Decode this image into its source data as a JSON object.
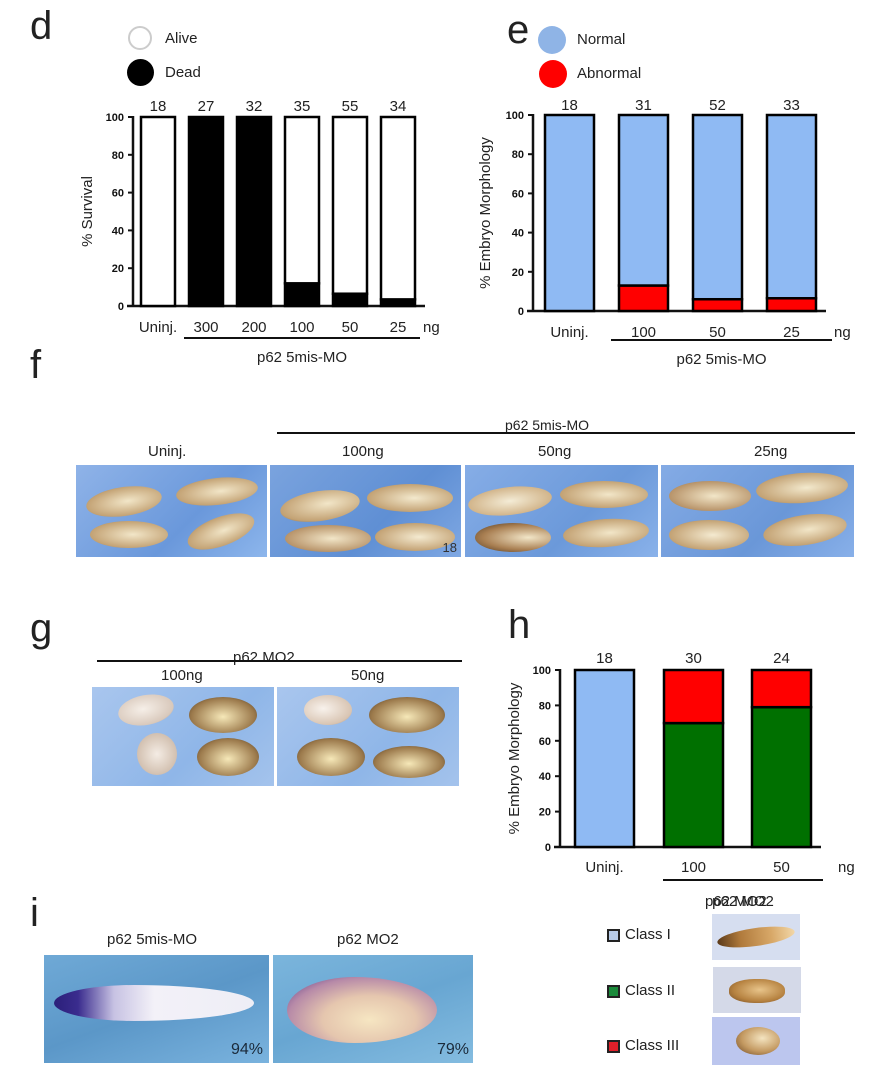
{
  "panels": {
    "d": {
      "letter": "d"
    },
    "e": {
      "letter": "e"
    },
    "f": {
      "letter": "f"
    },
    "g": {
      "letter": "g"
    },
    "h": {
      "letter": "h"
    },
    "i": {
      "letter": "i"
    }
  },
  "chart_data": [
    {
      "id": "d",
      "type": "bar",
      "stacked": true,
      "title": "",
      "ylabel": "% Survival",
      "xlabel": "",
      "unit_label": "ng",
      "group_label": "p62 5mis-MO",
      "categories": [
        "Uninj.",
        "300",
        "200",
        "100",
        "50",
        "25"
      ],
      "n_labels": [
        "18",
        "27",
        "32",
        "35",
        "55",
        "34"
      ],
      "ylim": [
        0,
        100
      ],
      "yticks": [
        "0",
        "20",
        "40",
        "60",
        "80",
        "100"
      ],
      "series": [
        {
          "name": "Dead",
          "color": "#000000",
          "values": [
            0,
            100,
            100,
            12,
            6.5,
            3.5
          ]
        },
        {
          "name": "Alive",
          "color": "#ffffff",
          "values": [
            100,
            0,
            0,
            88,
            93.5,
            96.5
          ]
        }
      ],
      "legend": [
        {
          "name": "Alive",
          "color": "#ffffff"
        },
        {
          "name": "Dead",
          "color": "#000000"
        }
      ],
      "legend_position": "top"
    },
    {
      "id": "e",
      "type": "bar",
      "stacked": true,
      "title": "",
      "ylabel": "%  Embryo Morphology",
      "xlabel": "",
      "unit_label": "ng",
      "group_label": "p62 5mis-MO",
      "categories": [
        "Uninj.",
        "100",
        "50",
        "25"
      ],
      "n_labels": [
        "18",
        "31",
        "52",
        "33"
      ],
      "ylim": [
        0,
        100
      ],
      "yticks": [
        "0",
        "20",
        "40",
        "60",
        "80",
        "100"
      ],
      "series": [
        {
          "name": "Abnormal",
          "color": "#ff0000",
          "values": [
            0,
            13,
            6,
            6.5
          ]
        },
        {
          "name": "Normal",
          "color": "#8fbaf3",
          "values": [
            100,
            87,
            94,
            93.5
          ]
        }
      ],
      "legend": [
        {
          "name": "Normal",
          "color": "#8fbaf3"
        },
        {
          "name": "Abnormal",
          "color": "#ff0000"
        }
      ],
      "legend_position": "top"
    },
    {
      "id": "h",
      "type": "bar",
      "stacked": true,
      "title": "",
      "ylabel": "%  Embryo Morphology",
      "xlabel": "",
      "unit_label": "ng",
      "group_label": "p62 MO2",
      "categories": [
        "Uninj.",
        "100",
        "50"
      ],
      "n_labels": [
        "18",
        "30",
        "24"
      ],
      "ylim": [
        0,
        100
      ],
      "yticks": [
        "0",
        "20",
        "40",
        "60",
        "80",
        "100"
      ],
      "series": [
        {
          "name": "Class I",
          "color": "#8fbaf3",
          "values": [
            100,
            0,
            0
          ]
        },
        {
          "name": "Class II",
          "color": "#007000",
          "values": [
            0,
            70,
            79
          ]
        },
        {
          "name": "Class III",
          "color": "#ff0000",
          "values": [
            0,
            30,
            21
          ]
        }
      ],
      "legend": [
        {
          "name": "Class I",
          "color": "#b8cce8"
        },
        {
          "name": "Class II",
          "color": "#1a8a3a"
        },
        {
          "name": "Class III",
          "color": "#e0202a"
        }
      ],
      "legend_position": "bottom-right"
    }
  ],
  "figure_f": {
    "group_label": "p62 5mis-MO",
    "columns": [
      "Uninj.",
      "100ng",
      "50ng",
      "25ng"
    ],
    "photo_annotation": "18"
  },
  "figure_g": {
    "group_label": "p62 MO2",
    "columns": [
      "100ng",
      "50ng"
    ]
  },
  "figure_i": {
    "columns": [
      {
        "label": "p62 5mis-MO",
        "percent": "94%"
      },
      {
        "label": "p62 MO2",
        "percent": "79%"
      }
    ]
  },
  "class_legend": {
    "title": "p62 MO2",
    "items": [
      {
        "label": "Class I",
        "color": "#b8cce8"
      },
      {
        "label": "Class II",
        "color": "#1a8a3a"
      },
      {
        "label": "Class III",
        "color": "#e0202a"
      }
    ]
  }
}
